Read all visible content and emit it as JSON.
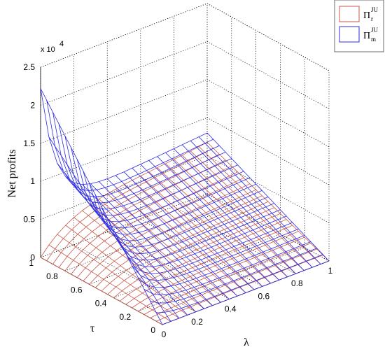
{
  "chart_data": {
    "type": "surface",
    "title": "",
    "xlabel": "λ",
    "ylabel": "τ",
    "zlabel": "Net profits",
    "zscale_label": "x 10",
    "zscale_exponent": "4",
    "xlim": [
      0,
      1
    ],
    "ylim": [
      0,
      1
    ],
    "zlim": [
      0,
      2.5
    ],
    "x_ticks": [
      "0",
      "0.2",
      "0.4",
      "0.6",
      "0.8",
      "1"
    ],
    "y_ticks": [
      "0",
      "0.2",
      "0.4",
      "0.6",
      "0.8",
      "1"
    ],
    "z_ticks": [
      "0",
      "0.5",
      "1",
      "1.5",
      "2",
      "2.5"
    ],
    "grid": true,
    "legend_position": "top-right",
    "mesh_divisions": 20,
    "series": [
      {
        "legend_base": "Π",
        "legend_sup": "JU",
        "legend_sub": "r",
        "color": "#c8574a",
        "description_values": {
          "at_lambda0_tau0": 0.0,
          "at_lambda0_tau1": 0.0,
          "peak_near_lambda": 0.3,
          "peak_value_x1e4": 1.58,
          "at_lambda1_tau1": 0.85,
          "at_lambda1_tau0": 0.0
        }
      },
      {
        "legend_base": "Π",
        "legend_sup": "JU",
        "legend_sub": "m",
        "color": "#2b2be6",
        "description_values": {
          "at_lambda0_tau1": 2.2,
          "at_lambda0_5_tau1": 0.62,
          "at_lambda1_tau1": 0.8,
          "at_lambda1_tau0": 0.0
        }
      }
    ]
  }
}
